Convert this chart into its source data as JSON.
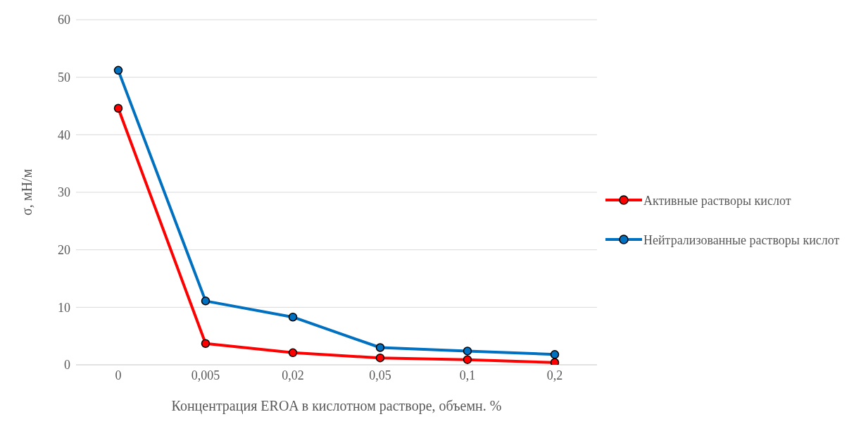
{
  "chart_data": {
    "type": "line",
    "xlabel": "Концентрация EROA в кислотном растворе, объемн. %",
    "ylabel": "σ, мН/м",
    "categories": [
      "0",
      "0,005",
      "0,02",
      "0,05",
      "0,1",
      "0,2"
    ],
    "series": [
      {
        "name": "Активные растворы кислот",
        "color": "#ff0000",
        "values": [
          44.6,
          3.7,
          2.1,
          1.2,
          0.9,
          0.4
        ]
      },
      {
        "name": "Нейтрализованные растворы кислот",
        "color": "#0070c0",
        "values": [
          51.2,
          11.1,
          8.3,
          3.0,
          2.4,
          1.8
        ]
      }
    ],
    "ylim": [
      0,
      60
    ],
    "yticks": [
      0,
      10,
      20,
      30,
      40,
      50,
      60
    ],
    "grid": "y",
    "legend": "right",
    "marker": "circle",
    "line_style": "solid"
  }
}
